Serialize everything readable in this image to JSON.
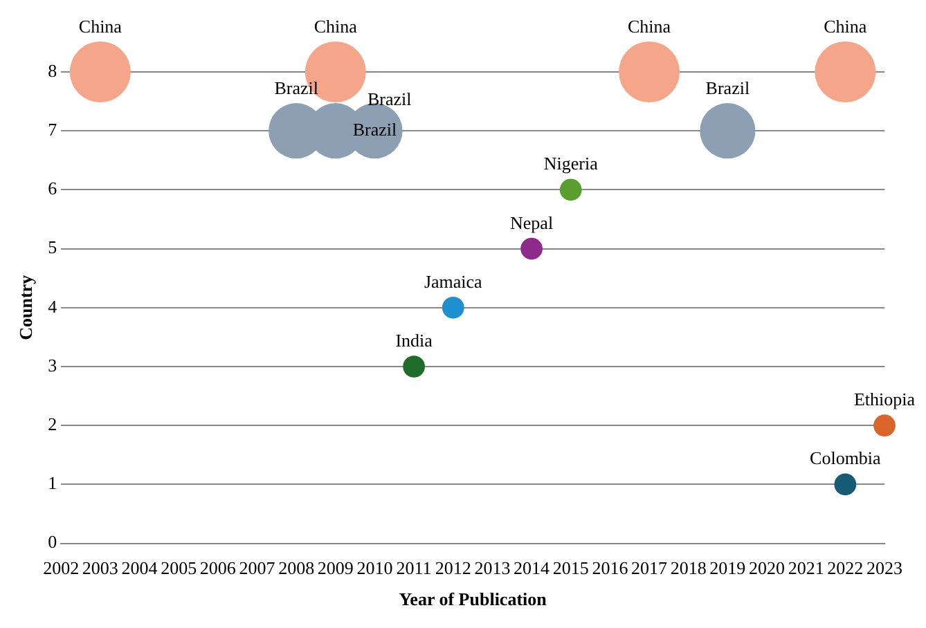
{
  "chart_data": {
    "type": "bubble",
    "xlabel": "Year of Publication",
    "ylabel": "Country",
    "xlim": [
      2002,
      2023
    ],
    "xticks": [
      2002,
      2003,
      2004,
      2005,
      2006,
      2007,
      2008,
      2009,
      2010,
      2011,
      2012,
      2013,
      2014,
      2015,
      2016,
      2017,
      2018,
      2019,
      2020,
      2021,
      2022,
      2023
    ],
    "ylim": [
      0,
      8
    ],
    "yticks": [
      0,
      1,
      2,
      3,
      4,
      5,
      6,
      7,
      8
    ],
    "grid": "y",
    "legend": false,
    "series": [
      {
        "name": "China",
        "color": "#f4a58a",
        "x": [
          2003,
          2009,
          2017,
          2022
        ],
        "values": [
          8,
          8,
          8,
          8
        ],
        "sizes": [
          1,
          1,
          1,
          1
        ]
      },
      {
        "name": "Brazil",
        "color": "#8d9fb3",
        "x": [
          2008,
          2009,
          2010,
          2019
        ],
        "values": [
          7,
          7,
          7,
          7
        ],
        "sizes": [
          0.83,
          0.83,
          0.83,
          0.83
        ]
      },
      {
        "name": "Nigeria",
        "color": "#5a9e2f",
        "x": [
          2015
        ],
        "values": [
          6
        ],
        "sizes": [
          0.13
        ]
      },
      {
        "name": "Nepal",
        "color": "#8e2a8b",
        "x": [
          2014
        ],
        "values": [
          5
        ],
        "sizes": [
          0.13
        ]
      },
      {
        "name": "Jamaica",
        "color": "#1e90d0",
        "x": [
          2012
        ],
        "values": [
          4
        ],
        "sizes": [
          0.13
        ]
      },
      {
        "name": "India",
        "color": "#1e6b2a",
        "x": [
          2011
        ],
        "values": [
          3
        ],
        "sizes": [
          0.13
        ]
      },
      {
        "name": "Ethiopia",
        "color": "#d9652a",
        "x": [
          2023
        ],
        "values": [
          2
        ],
        "sizes": [
          0.13
        ]
      },
      {
        "name": "Colombia",
        "color": "#175a76",
        "x": [
          2022
        ],
        "values": [
          1
        ],
        "sizes": [
          0.13
        ]
      }
    ]
  }
}
